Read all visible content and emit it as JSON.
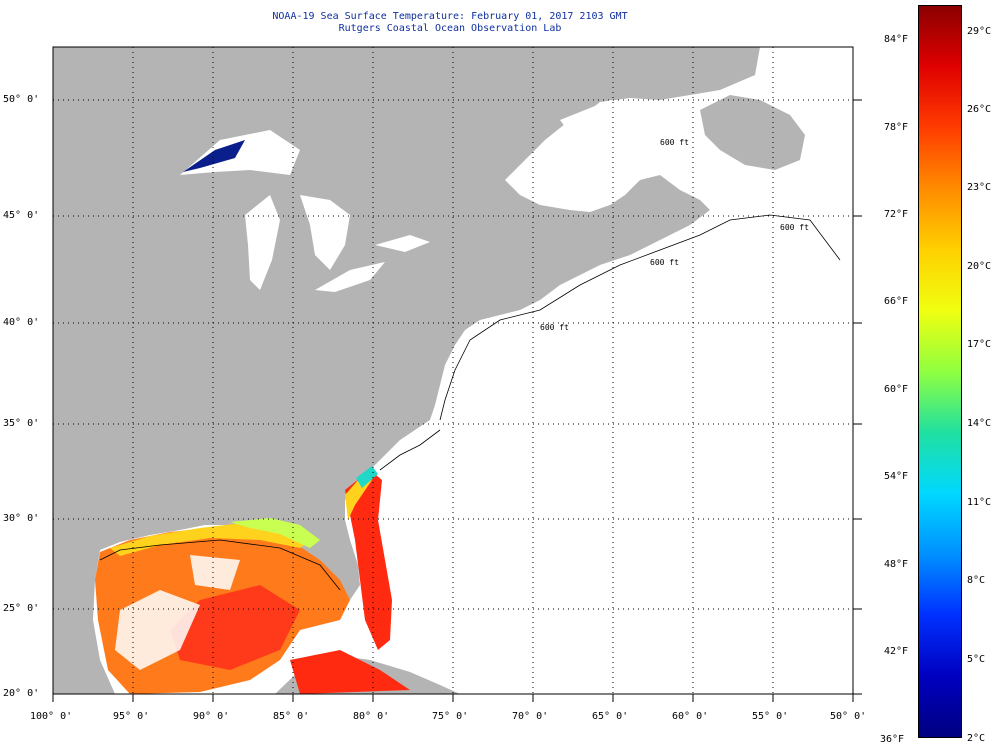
{
  "title_line1": "NOAA-19 Sea Surface Temperature:  February 01, 2017 2103 GMT",
  "title_line2": "Rutgers Coastal Ocean Observation Lab",
  "lon_labels": [
    "100° 0'",
    "95° 0'",
    "90° 0'",
    "85° 0'",
    "80° 0'",
    "75° 0'",
    "70° 0'",
    "65° 0'",
    "60° 0'",
    "55° 0'",
    "50° 0'"
  ],
  "lat_labels": [
    "20° 0'",
    "25° 0'",
    "30° 0'",
    "35° 0'",
    "40° 0'",
    "45° 0'",
    "50° 0'"
  ],
  "colorbar": {
    "fahrenheit": [
      "84°F",
      "78°F",
      "72°F",
      "66°F",
      "60°F",
      "54°F",
      "48°F",
      "42°F",
      "36°F"
    ],
    "celsius": [
      "29°C",
      "26°C",
      "23°C",
      "20°C",
      "17°C",
      "14°C",
      "11°C",
      "8°C",
      "5°C",
      "2°C"
    ],
    "colors": [
      "#8b0000",
      "#e00000",
      "#ff3c00",
      "#ff8c00",
      "#ffd000",
      "#f0ff10",
      "#90ff40",
      "#20e0a0",
      "#00d8ff",
      "#0090ff",
      "#0030ff",
      "#0000c0",
      "#000080"
    ]
  },
  "isobath_labels": [
    "600 ft",
    "600 ft",
    "600 ft",
    "600 ft"
  ],
  "colors": {
    "land": "#b4b4b4",
    "ocean_nodata": "#ffffff",
    "grid": "#000000"
  }
}
